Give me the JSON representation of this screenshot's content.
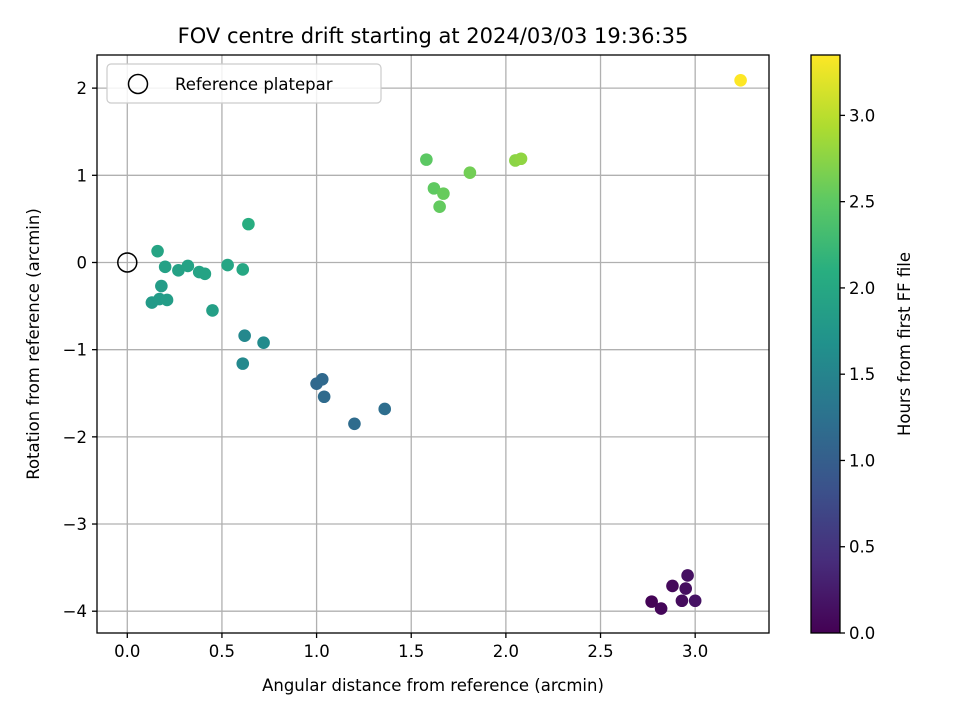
{
  "chart_data": {
    "type": "scatter",
    "title": "FOV centre drift starting at 2024/03/03 19:36:35",
    "xlabel": "Angular distance from reference (arcmin)",
    "ylabel": "Rotation from reference (arcmin)",
    "xlim": [
      -0.16,
      3.39
    ],
    "ylim": [
      -4.25,
      2.38
    ],
    "x_ticks": [
      {
        "value": 0.0,
        "label": "0.0"
      },
      {
        "value": 0.5,
        "label": "0.5"
      },
      {
        "value": 1.0,
        "label": "1.0"
      },
      {
        "value": 1.5,
        "label": "1.5"
      },
      {
        "value": 2.0,
        "label": "2.0"
      },
      {
        "value": 2.5,
        "label": "2.5"
      },
      {
        "value": 3.0,
        "label": "3.0"
      }
    ],
    "y_ticks": [
      {
        "value": -4,
        "label": "−4"
      },
      {
        "value": -3,
        "label": "−3"
      },
      {
        "value": -2,
        "label": "−2"
      },
      {
        "value": -1,
        "label": "−1"
      },
      {
        "value": 0,
        "label": "0"
      },
      {
        "value": 1,
        "label": "1"
      },
      {
        "value": 2,
        "label": "2"
      }
    ],
    "grid": true,
    "legend": {
      "position": "top-left",
      "entries": [
        {
          "label": "Reference platepar",
          "marker": "open-circle"
        }
      ]
    },
    "reference_point": {
      "x": 0.0,
      "y": 0.0
    },
    "colorbar": {
      "label": "Hours from first FF file",
      "min": 0.0,
      "max": 3.35,
      "colormap": "viridis",
      "ticks": [
        {
          "value": 0.0,
          "label": "0.0"
        },
        {
          "value": 0.5,
          "label": "0.5"
        },
        {
          "value": 1.0,
          "label": "1.0"
        },
        {
          "value": 1.5,
          "label": "1.5"
        },
        {
          "value": 2.0,
          "label": "2.0"
        },
        {
          "value": 2.5,
          "label": "2.5"
        },
        {
          "value": 3.0,
          "label": "3.0"
        }
      ]
    },
    "points": [
      {
        "x": 2.77,
        "y": -3.89,
        "t": 0.02
      },
      {
        "x": 2.82,
        "y": -3.97,
        "t": 0.05
      },
      {
        "x": 2.88,
        "y": -3.71,
        "t": 0.08
      },
      {
        "x": 2.93,
        "y": -3.88,
        "t": 0.1
      },
      {
        "x": 2.95,
        "y": -3.74,
        "t": 0.12
      },
      {
        "x": 2.96,
        "y": -3.59,
        "t": 0.14
      },
      {
        "x": 3.0,
        "y": -3.88,
        "t": 0.16
      },
      {
        "x": 1.0,
        "y": -1.39,
        "t": 1.12
      },
      {
        "x": 1.03,
        "y": -1.34,
        "t": 1.14
      },
      {
        "x": 1.04,
        "y": -1.54,
        "t": 1.16
      },
      {
        "x": 1.2,
        "y": -1.85,
        "t": 1.18
      },
      {
        "x": 1.36,
        "y": -1.68,
        "t": 1.2
      },
      {
        "x": 0.62,
        "y": -0.84,
        "t": 1.55
      },
      {
        "x": 0.61,
        "y": -1.16,
        "t": 1.57
      },
      {
        "x": 0.72,
        "y": -0.92,
        "t": 1.6
      },
      {
        "x": 0.13,
        "y": -0.46,
        "t": 1.8
      },
      {
        "x": 0.17,
        "y": -0.42,
        "t": 1.82
      },
      {
        "x": 0.18,
        "y": -0.27,
        "t": 1.84
      },
      {
        "x": 0.21,
        "y": -0.43,
        "t": 1.85
      },
      {
        "x": 0.45,
        "y": -0.55,
        "t": 1.88
      },
      {
        "x": 0.2,
        "y": -0.05,
        "t": 1.9
      },
      {
        "x": 0.27,
        "y": -0.09,
        "t": 1.91
      },
      {
        "x": 0.32,
        "y": -0.04,
        "t": 1.92
      },
      {
        "x": 0.38,
        "y": -0.11,
        "t": 1.93
      },
      {
        "x": 0.41,
        "y": -0.13,
        "t": 1.94
      },
      {
        "x": 0.16,
        "y": 0.13,
        "t": 1.95
      },
      {
        "x": 0.53,
        "y": -0.03,
        "t": 1.97
      },
      {
        "x": 0.61,
        "y": -0.08,
        "t": 1.99
      },
      {
        "x": 0.64,
        "y": 0.44,
        "t": 2.08
      },
      {
        "x": 1.58,
        "y": 1.18,
        "t": 2.5
      },
      {
        "x": 1.62,
        "y": 0.85,
        "t": 2.52
      },
      {
        "x": 1.65,
        "y": 0.64,
        "t": 2.54
      },
      {
        "x": 1.67,
        "y": 0.79,
        "t": 2.56
      },
      {
        "x": 1.81,
        "y": 1.03,
        "t": 2.62
      },
      {
        "x": 2.05,
        "y": 1.17,
        "t": 2.75
      },
      {
        "x": 2.08,
        "y": 1.19,
        "t": 2.78
      },
      {
        "x": 3.24,
        "y": 2.09,
        "t": 3.35
      }
    ]
  }
}
